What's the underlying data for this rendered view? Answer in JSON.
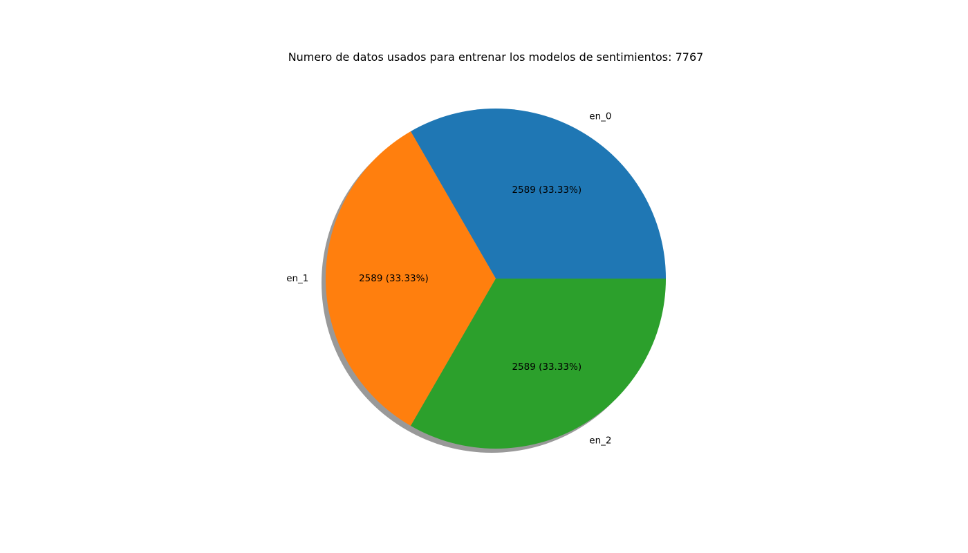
{
  "chart_data": {
    "type": "pie",
    "title": "Numero de datos usados para entrenar los modelos de sentimientos: 7767",
    "total": 7767,
    "slices": [
      {
        "label": "en_0",
        "value": 2589,
        "percent_label": "2589 (33.33%)",
        "color": "#1f77b4"
      },
      {
        "label": "en_1",
        "value": 2589,
        "percent_label": "2589 (33.33%)",
        "color": "#ff7f0e"
      },
      {
        "label": "en_2",
        "value": 2589,
        "percent_label": "2589 (33.33%)",
        "color": "#2ca02c"
      }
    ],
    "start_angle_deg": 0,
    "direction": "counterclockwise",
    "shadow": true,
    "legend": "none"
  }
}
